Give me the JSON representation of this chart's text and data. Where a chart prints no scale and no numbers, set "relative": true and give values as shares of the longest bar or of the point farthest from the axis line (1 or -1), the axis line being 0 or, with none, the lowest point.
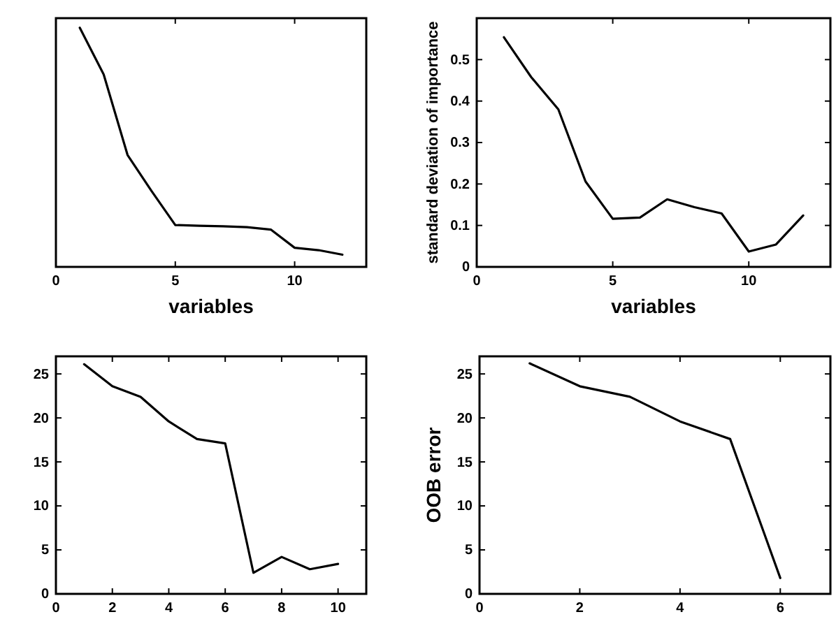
{
  "chart_data": [
    {
      "type": "line",
      "x": [
        1,
        2,
        3,
        4,
        5,
        6,
        7,
        8,
        9,
        10,
        11,
        12
      ],
      "relative": true,
      "xlabel": "variables",
      "xlim": [
        0,
        13
      ],
      "xticks": [
        0,
        5,
        10
      ],
      "series": [
        {
          "color": "#000000",
          "values": [
            1,
            0.805,
            0.468,
            0.318,
            0.175,
            0.172,
            0.17,
            0.166,
            0.156,
            0.08,
            0.07,
            0.051
          ]
        }
      ]
    },
    {
      "type": "line",
      "x": [
        1,
        2,
        3,
        4,
        5,
        6,
        7,
        8,
        9,
        10,
        11,
        12
      ],
      "xlabel": "variables",
      "ylabel": "standard deviation of importance",
      "xlim": [
        0,
        13
      ],
      "xticks": [
        0,
        5,
        10
      ],
      "ylim": [
        0,
        0.6
      ],
      "yticks": [
        0,
        0.1,
        0.2,
        0.3,
        0.4,
        0.5
      ],
      "series": [
        {
          "color": "#000000",
          "values": [
            0.554,
            0.458,
            0.38,
            0.206,
            0.116,
            0.119,
            0.163,
            0.144,
            0.129,
            0.037,
            0.054,
            0.124
          ]
        }
      ]
    },
    {
      "type": "line",
      "x": [
        1,
        2,
        3,
        4,
        5,
        6,
        7,
        8,
        9,
        10
      ],
      "xlim": [
        0,
        11
      ],
      "xticks": [
        0,
        2,
        4,
        6,
        8,
        10
      ],
      "ylim": [
        0,
        27
      ],
      "yticks": [
        0,
        5,
        10,
        15,
        20,
        25
      ],
      "series": [
        {
          "color": "#000000",
          "values": [
            26.1,
            23.6,
            22.4,
            19.6,
            17.6,
            17.1,
            2.4,
            4.2,
            2.8,
            3.4
          ]
        }
      ]
    },
    {
      "type": "line",
      "x": [
        1,
        2,
        3,
        4,
        5,
        6
      ],
      "ylabel": "OOB error",
      "xlim": [
        0,
        7
      ],
      "xticks": [
        0,
        2,
        4,
        6
      ],
      "ylim": [
        0,
        27
      ],
      "yticks": [
        0,
        5,
        10,
        15,
        20,
        25
      ],
      "series": [
        {
          "color": "#000000",
          "values": [
            26.2,
            23.6,
            22.4,
            19.6,
            17.6,
            1.8
          ]
        }
      ]
    }
  ]
}
